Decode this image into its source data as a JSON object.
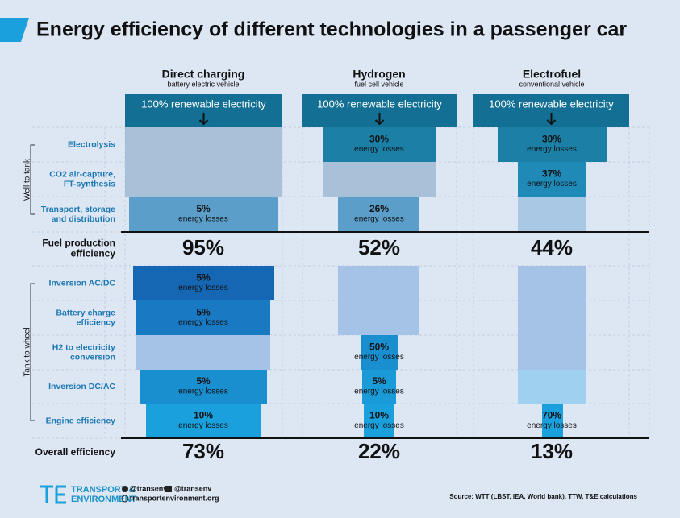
{
  "header": {
    "title": "Energy efficiency of different technologies in a passenger car"
  },
  "columns": [
    {
      "name": "Direct charging",
      "subtitle": "battery electric vehicle",
      "input": "100% renewable electricity"
    },
    {
      "name": "Hydrogen",
      "subtitle": "fuel cell vehicle",
      "input": "100% renewable electricity"
    },
    {
      "name": "Electrofuel",
      "subtitle": "conventional vehicle",
      "input": "100% renewable electricity"
    }
  ],
  "sections": [
    {
      "label": "Well to tank",
      "rows": [
        {
          "label": [
            "Electrolysis"
          ],
          "cells": [
            null,
            {
              "value": "30%",
              "note": "energy losses"
            },
            {
              "value": "30%",
              "note": "energy losses"
            }
          ]
        },
        {
          "label": [
            "CO2 air-capture,",
            "FT-synthesis"
          ],
          "cells": [
            null,
            null,
            {
              "value": "37%",
              "note": "energy losses"
            }
          ]
        },
        {
          "label": [
            "Transport, storage",
            "and distribution"
          ],
          "cells": [
            {
              "value": "5%",
              "note": "energy losses"
            },
            {
              "value": "26%",
              "note": "energy losses"
            },
            null
          ]
        }
      ]
    },
    {
      "label": "Tank to wheel",
      "rows": [
        {
          "label": [
            "Inversion AC/DC"
          ],
          "cells": [
            {
              "value": "5%",
              "note": "energy losses"
            },
            null,
            null
          ]
        },
        {
          "label": [
            "Battery charge",
            "efficiency"
          ],
          "cells": [
            {
              "value": "5%",
              "note": "energy losses"
            },
            null,
            null
          ]
        },
        {
          "label": [
            "H2 to electricity",
            "conversion"
          ],
          "cells": [
            null,
            {
              "value": "50%",
              "note": "energy losses"
            },
            null
          ]
        },
        {
          "label": [
            "Inversion DC/AC"
          ],
          "cells": [
            {
              "value": "5%",
              "note": "energy losses"
            },
            {
              "value": "5%",
              "note": "energy losses"
            },
            null
          ]
        },
        {
          "label": [
            "Engine efficiency"
          ],
          "cells": [
            {
              "value": "10%",
              "note": "energy losses"
            },
            {
              "value": "10%",
              "note": "energy losses"
            },
            {
              "value": "70%",
              "note": "energy losses"
            }
          ]
        }
      ]
    }
  ],
  "fuel_production": {
    "label": [
      "Fuel production",
      "efficiency"
    ],
    "values": [
      "95%",
      "52%",
      "44%"
    ]
  },
  "overall": {
    "label": [
      "Overall efficiency"
    ],
    "values": [
      "73%",
      "22%",
      "13%"
    ]
  },
  "footer": {
    "logo": [
      "TRANSPORT &",
      "ENVIRONMENT"
    ],
    "twitter": "@transenv",
    "facebook": "@transenv",
    "website": "transportenvironment.org",
    "source": "Source: WTT (LBST, IEA, World bank), TTW, T&E calculations"
  }
}
